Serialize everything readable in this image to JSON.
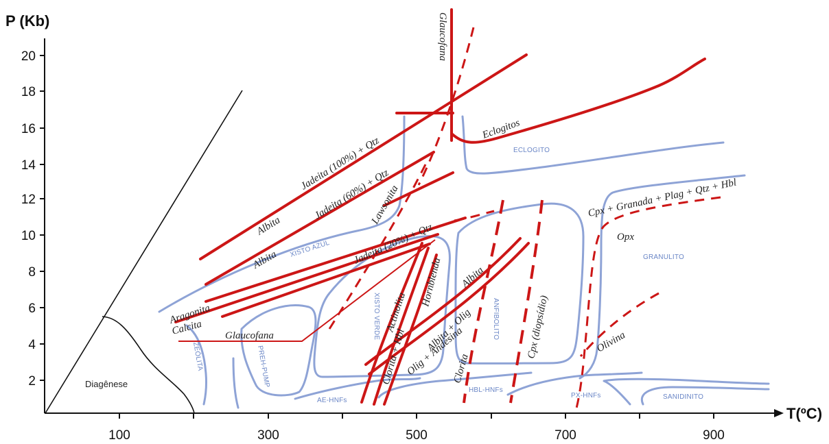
{
  "axes": {
    "y_title": "P (Kb)",
    "x_title": "T(ºC)",
    "y_ticks": [
      "2",
      "4",
      "6",
      "8",
      "10",
      "12",
      "14",
      "16",
      "18",
      "20"
    ],
    "x_ticks": [
      "100",
      "300",
      "500",
      "700",
      "900"
    ]
  },
  "fields": {
    "diagenesis": "Diagênese",
    "zeolite": "ZEÓLITA",
    "prehnite_pumpellyite": "PREH-PUMP",
    "blueschist": "XISTO AZUL",
    "greenschist": "XISTO VERDE",
    "amphibolite": "ANFIBOLITO",
    "eclogite": "ECLOGITO",
    "granulite": "GRANULITO",
    "ae_hornfels": "AE-HNFs",
    "hbl_hornfels": "HBL-HNFs",
    "px_hornfels": "PX-HNFs",
    "sanidinite": "SANIDINITO"
  },
  "reactions": {
    "jadeite_100": "Jadeita (100%) + Qtz",
    "albite_a": "Albita",
    "jadeite_60": "Jadeita (60%) + Qtz",
    "albite_b": "Albita",
    "lawsonite": "Lawsonita",
    "jadeite_20": "Jadeita (20%) + Qtz",
    "glaucophane_top": "Glaucofana",
    "eclogites": "Eclogitos",
    "aragonite": "Aragonita",
    "calcite": "Calcita",
    "glaucophane_low": "Glaucofana",
    "actinolite": "Actinolita",
    "chlorite_hbl": "Clorita + Hbl",
    "hornblende": "Hornblenda",
    "albite_c": "Albita",
    "albite_olig": "Albita + Olig",
    "olig_andesine": "Olig + Andesina",
    "chlorite": "Clorita",
    "cpx_diopside": "Cpx (diopsídio)",
    "cpx_garnet": "Cpx + Granada + Plag + Qtz + Hbl",
    "opx": "Opx",
    "olivine": "Olivina"
  },
  "colors": {
    "reaction_line": "#cc1616",
    "facies_boundary": "#8ea3d6",
    "facies_label": "#6a86c6",
    "axis": "#111111"
  }
}
